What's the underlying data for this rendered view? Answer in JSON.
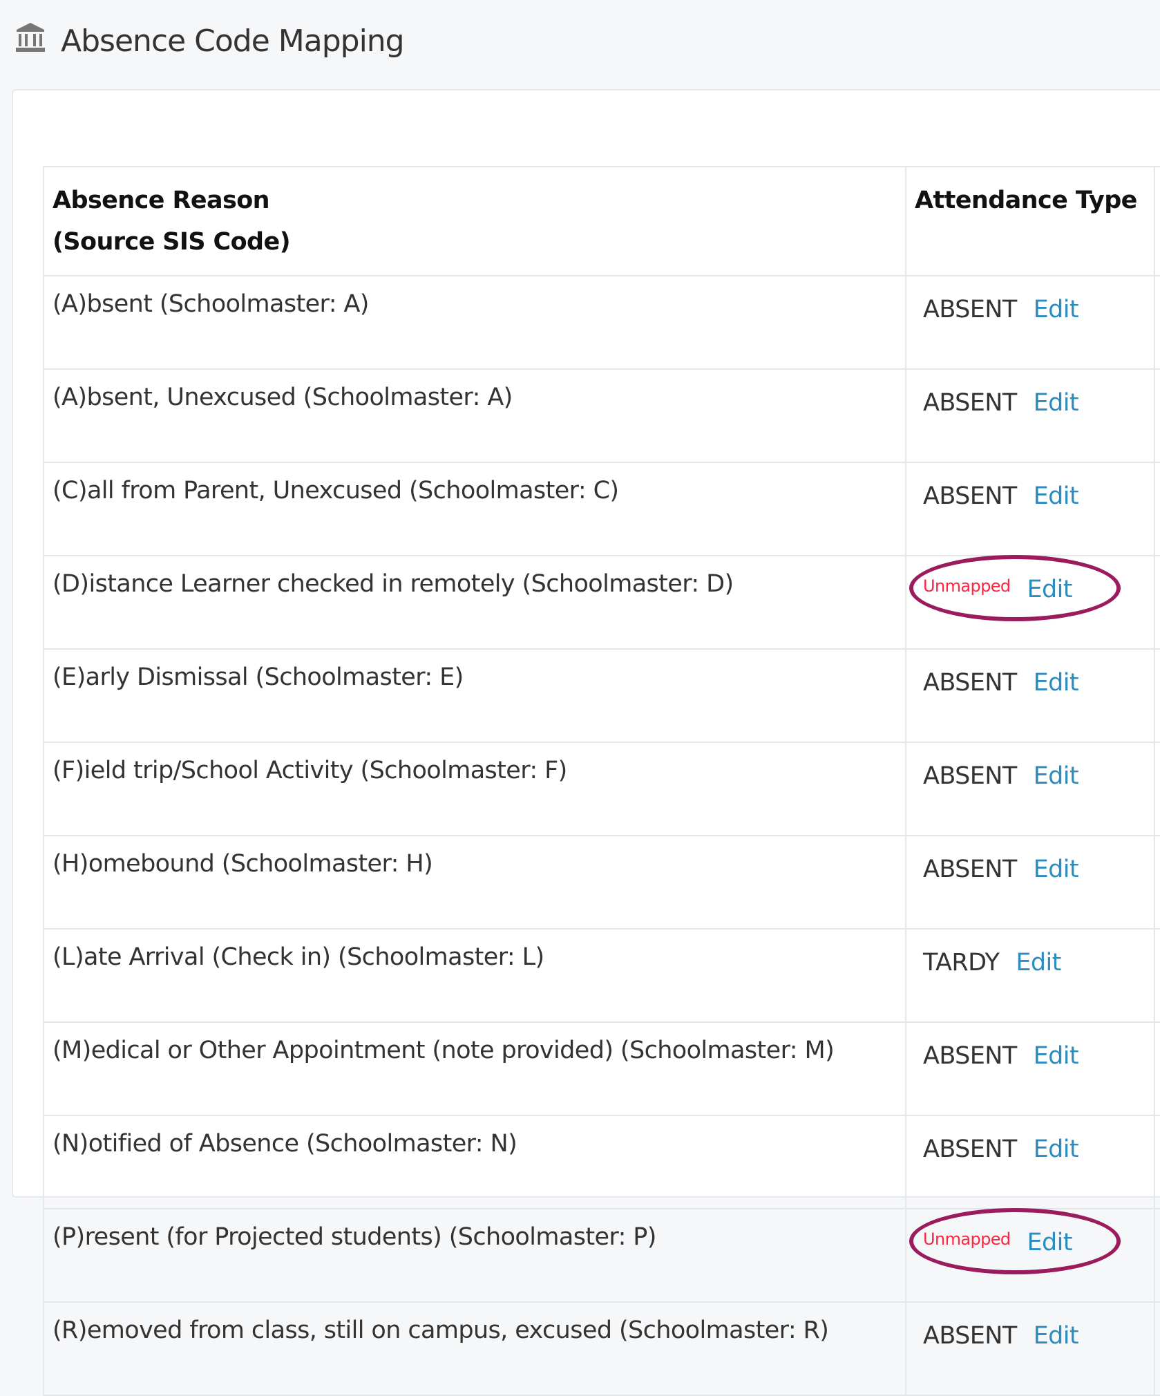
{
  "page": {
    "title": "Absence Code Mapping",
    "icon": "bank-icon"
  },
  "table": {
    "headers": {
      "reason_line1": "Absence Reason",
      "reason_line2": "(Source SIS Code)",
      "type": "Attendance Type"
    },
    "edit_label": "Edit",
    "rows": [
      {
        "reason": "(A)bsent (Schoolmaster: A)",
        "type": "ABSENT",
        "unmapped": false
      },
      {
        "reason": "(A)bsent, Unexcused (Schoolmaster: A)",
        "type": "ABSENT",
        "unmapped": false
      },
      {
        "reason": "(C)all from Parent, Unexcused (Schoolmaster: C)",
        "type": "ABSENT",
        "unmapped": false
      },
      {
        "reason": "(D)istance Learner checked in remotely (Schoolmaster: D)",
        "type": "Unmapped",
        "unmapped": true
      },
      {
        "reason": "(E)arly Dismissal (Schoolmaster: E)",
        "type": "ABSENT",
        "unmapped": false
      },
      {
        "reason": "(F)ield trip/School Activity (Schoolmaster: F)",
        "type": "ABSENT",
        "unmapped": false
      },
      {
        "reason": "(H)omebound (Schoolmaster: H)",
        "type": "ABSENT",
        "unmapped": false
      },
      {
        "reason": "(L)ate Arrival (Check in) (Schoolmaster: L)",
        "type": "TARDY",
        "unmapped": false
      },
      {
        "reason": "(M)edical or Other Appointment (note provided) (Schoolmaster: M)",
        "type": "ABSENT",
        "unmapped": false
      },
      {
        "reason": "(N)otified of Absence (Schoolmaster: N)",
        "type": "ABSENT",
        "unmapped": false
      },
      {
        "reason": "(P)resent (for Projected students) (Schoolmaster: P)",
        "type": "Unmapped",
        "unmapped": true
      },
      {
        "reason": "(R)emoved from class, still on campus, excused (Schoolmaster: R)",
        "type": "ABSENT",
        "unmapped": false
      }
    ]
  },
  "colors": {
    "edit_link": "#2b8cbf",
    "unmapped": "#ff2440",
    "highlight_ring": "#9b1c5c"
  }
}
